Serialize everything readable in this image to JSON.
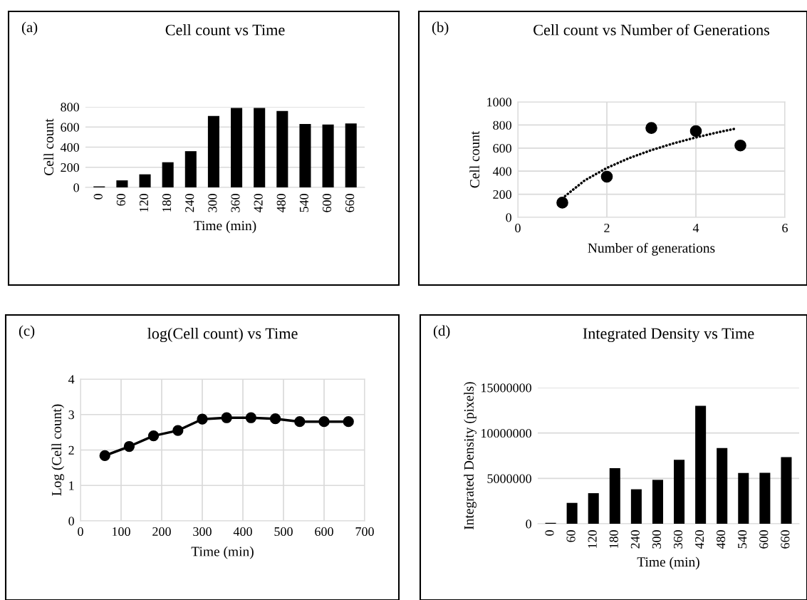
{
  "chart_data": [
    {
      "type": "bar",
      "title": "Cell count vs Time",
      "xlabel": "Time (min)",
      "ylabel": "Cell count",
      "annotations": [
        "(a)"
      ],
      "categories": [
        "0",
        "60",
        "120",
        "180",
        "240",
        "300",
        "360",
        "420",
        "480",
        "540",
        "600",
        "660"
      ],
      "series": [
        {
          "color": "#000000",
          "values": [
            10,
            70,
            130,
            250,
            360,
            710,
            790,
            790,
            760,
            630,
            625,
            635
          ]
        }
      ],
      "ylim": [
        0,
        800
      ],
      "yticks": [
        0,
        200,
        400,
        600,
        800
      ],
      "grid": "y"
    },
    {
      "type": "scatter",
      "title": "Cell count vs Number of Generations",
      "xlabel": "Number of generations",
      "ylabel": "Cell count",
      "annotations": [
        "(b)"
      ],
      "series": [
        {
          "type": "scatter",
          "color": "#000000",
          "marker": "circle",
          "x": [
            1,
            2,
            3,
            4,
            5
          ],
          "values": [
            127,
            352,
            774,
            747,
            622
          ]
        },
        {
          "type": "line",
          "color": "#000000",
          "marker": "none",
          "line_style": "dotted",
          "x": [
            1,
            1.5,
            2,
            2.5,
            3,
            3.5,
            4,
            4.5,
            4.9
          ],
          "values": [
            165,
            319,
            428,
            513,
            582,
            641,
            692,
            737,
            769
          ]
        }
      ],
      "xlim": [
        0,
        6
      ],
      "xticks": [
        0,
        2,
        4,
        6
      ],
      "ylim": [
        0,
        1000
      ],
      "yticks": [
        0,
        200,
        400,
        600,
        800,
        1000
      ],
      "grid": true
    },
    {
      "type": "line",
      "title": "log(Cell count) vs Time",
      "xlabel": "Time (min)",
      "ylabel": "Log (Cell count)",
      "annotations": [
        "(c)"
      ],
      "x": [
        60,
        120,
        180,
        240,
        300,
        360,
        420,
        480,
        540,
        600,
        660
      ],
      "series": [
        {
          "color": "#000000",
          "values": [
            1.84,
            2.1,
            2.4,
            2.55,
            2.87,
            2.91,
            2.91,
            2.88,
            2.8,
            2.8,
            2.8
          ]
        }
      ],
      "marker": "circle",
      "line_style": "solid",
      "xlim": [
        0,
        700
      ],
      "xticks": [
        0,
        100,
        200,
        300,
        400,
        500,
        600,
        700
      ],
      "ylim": [
        0,
        4
      ],
      "yticks": [
        0,
        1,
        2,
        3,
        4
      ],
      "grid": true
    },
    {
      "type": "bar",
      "title": "Integrated Density vs Time",
      "xlabel": "Time (min)",
      "ylabel": "Integrated Density (pixels)",
      "annotations": [
        "(d)"
      ],
      "categories": [
        "0",
        "60",
        "120",
        "180",
        "240",
        "300",
        "360",
        "420",
        "480",
        "540",
        "600",
        "660"
      ],
      "series": [
        {
          "color": "#000000",
          "values": [
            100000,
            2300000,
            3370000,
            6130000,
            3800000,
            4840000,
            7050000,
            12990000,
            8350000,
            5590000,
            5610000,
            7340000
          ]
        }
      ],
      "ylim": [
        0,
        15000000
      ],
      "yticks": [
        0,
        5000000,
        10000000,
        15000000
      ],
      "grid": "y"
    }
  ]
}
